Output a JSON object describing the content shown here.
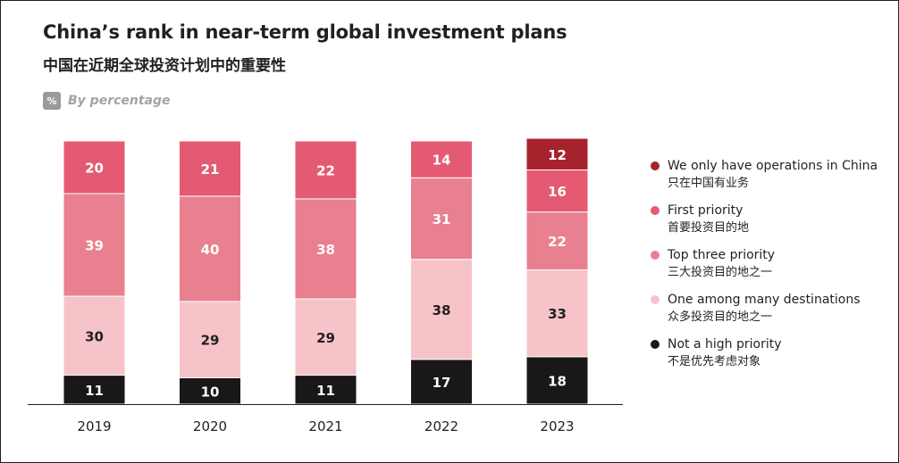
{
  "title": "China’s rank in near-term global investment plans",
  "subtitle": "中国在近期全球投资计划中的重要性",
  "unit": {
    "icon_symbol": "%",
    "icon_name": "percent-icon",
    "label": "By percentage"
  },
  "chart_data": {
    "type": "bar",
    "stacked": true,
    "categories": [
      "2019",
      "2020",
      "2021",
      "2022",
      "2023"
    ],
    "series": [
      {
        "name": "Not a high priority",
        "name_zh": "不是优先考虑对象",
        "color": "#1a1718",
        "label_color": "#ffffff",
        "values": [
          11,
          10,
          11,
          17,
          18
        ]
      },
      {
        "name": "One among many destinations",
        "name_zh": "众多投资目的地之一",
        "color": "#f6c3c9",
        "label_color": "#231f20",
        "values": [
          30,
          29,
          29,
          38,
          33
        ]
      },
      {
        "name": "Top three priority",
        "name_zh": "三大投资目的地之一",
        "color": "#e9808f",
        "label_color": "#ffffff",
        "values": [
          39,
          40,
          38,
          31,
          22
        ]
      },
      {
        "name": "First priority",
        "name_zh": "首要投资目的地",
        "color": "#e45a72",
        "label_color": "#ffffff",
        "values": [
          20,
          21,
          22,
          14,
          16
        ]
      },
      {
        "name": "We only have operations in China",
        "name_zh": "只在中国有业务",
        "color": "#a6222c",
        "label_color": "#ffffff",
        "values": [
          0,
          0,
          0,
          0,
          12
        ]
      }
    ],
    "ylim": [
      0,
      100
    ],
    "grid": false,
    "legend_position": "right"
  }
}
